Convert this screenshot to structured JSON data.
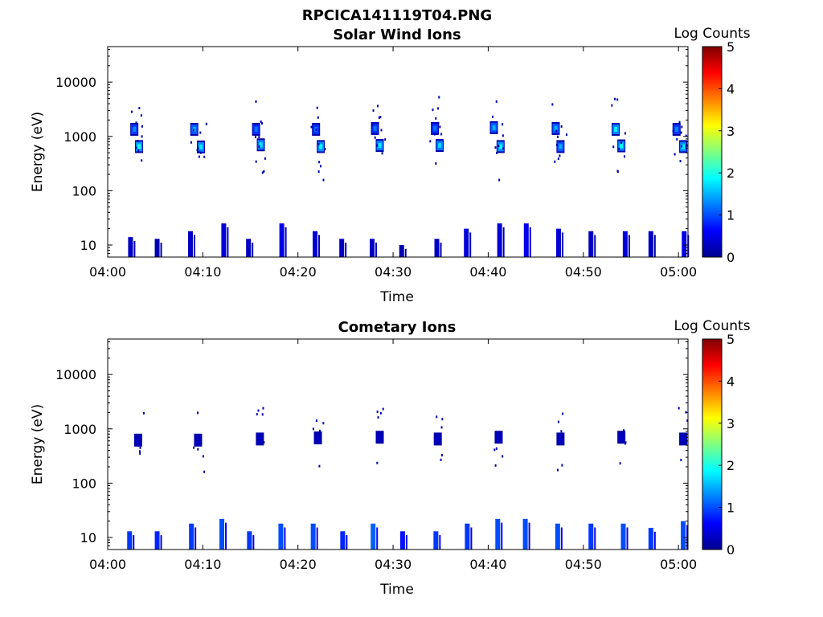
{
  "figure": {
    "suptitle": "RPCICA141119T04.PNG"
  },
  "colormap": {
    "name": "jet",
    "stops": [
      "#00008f",
      "#0000ff",
      "#0080ff",
      "#00ffff",
      "#80ff80",
      "#ffff00",
      "#ff8000",
      "#ff0000",
      "#800000"
    ]
  },
  "chart_data": [
    {
      "type": "heatmap",
      "title": "Solar Wind Ions",
      "xlabel": "Time",
      "ylabel": "Energy (eV)",
      "colorbar_label": "Log Counts",
      "colorbar_range": [
        0,
        5
      ],
      "colorbar_ticks": [
        "0",
        "1",
        "2",
        "3",
        "4",
        "5"
      ],
      "xlim": [
        "04:00",
        "05:01"
      ],
      "xticks": [
        "04:00",
        "04:10",
        "04:20",
        "04:30",
        "04:40",
        "04:50",
        "05:00"
      ],
      "yscale": "log",
      "ylim": [
        6,
        45000
      ],
      "yticks": [
        {
          "value": 10,
          "label": "10"
        },
        {
          "value": 100,
          "label": "100"
        },
        {
          "value": 1000,
          "label": "1000"
        },
        {
          "value": 10000,
          "label": "10000"
        }
      ],
      "peak_bands": [
        {
          "t": "04:03.3",
          "e": 650,
          "v": 2.0
        },
        {
          "t": "04:02.8",
          "e": 1350,
          "v": 1.3
        },
        {
          "t": "04:09.8",
          "e": 640,
          "v": 1.8
        },
        {
          "t": "04:09.1",
          "e": 1350,
          "v": 1.5
        },
        {
          "t": "04:16.1",
          "e": 700,
          "v": 1.8
        },
        {
          "t": "04:15.6",
          "e": 1350,
          "v": 1.2
        },
        {
          "t": "04:22.4",
          "e": 650,
          "v": 1.9
        },
        {
          "t": "04:21.9",
          "e": 1350,
          "v": 1.2
        },
        {
          "t": "04:28.6",
          "e": 680,
          "v": 1.8
        },
        {
          "t": "04:28.1",
          "e": 1400,
          "v": 1.2
        },
        {
          "t": "04:34.9",
          "e": 680,
          "v": 1.7
        },
        {
          "t": "04:34.4",
          "e": 1400,
          "v": 1.2
        },
        {
          "t": "04:41.3",
          "e": 650,
          "v": 1.9
        },
        {
          "t": "04:40.6",
          "e": 1450,
          "v": 1.5
        },
        {
          "t": "04:47.6",
          "e": 650,
          "v": 1.5
        },
        {
          "t": "04:47.1",
          "e": 1400,
          "v": 1.5
        },
        {
          "t": "04:54.0",
          "e": 670,
          "v": 1.9
        },
        {
          "t": "04:53.4",
          "e": 1350,
          "v": 1.8
        },
        {
          "t": "05:00.5",
          "e": 650,
          "v": 1.8
        },
        {
          "t": "04:59.8",
          "e": 1350,
          "v": 1.3
        }
      ],
      "low_energy_columns": [
        {
          "t": "04:02.4",
          "e_top": 14,
          "v": 0.3
        },
        {
          "t": "04:05.2",
          "e_top": 13,
          "v": 0.2
        },
        {
          "t": "04:08.7",
          "e_top": 18,
          "v": 0.3
        },
        {
          "t": "04:12.2",
          "e_top": 25,
          "v": 0.4
        },
        {
          "t": "04:14.8",
          "e_top": 13,
          "v": 0.3
        },
        {
          "t": "04:18.3",
          "e_top": 25,
          "v": 0.5
        },
        {
          "t": "04:21.8",
          "e_top": 18,
          "v": 0.4
        },
        {
          "t": "04:24.6",
          "e_top": 13,
          "v": 0.3
        },
        {
          "t": "04:27.8",
          "e_top": 13,
          "v": 0.3
        },
        {
          "t": "04:30.9",
          "e_top": 10,
          "v": 0.2
        },
        {
          "t": "04:34.6",
          "e_top": 13,
          "v": 0.3
        },
        {
          "t": "04:37.7",
          "e_top": 20,
          "v": 0.4
        },
        {
          "t": "04:41.2",
          "e_top": 25,
          "v": 0.4
        },
        {
          "t": "04:44.0",
          "e_top": 25,
          "v": 0.5
        },
        {
          "t": "04:47.4",
          "e_top": 20,
          "v": 0.4
        },
        {
          "t": "04:50.8",
          "e_top": 18,
          "v": 0.3
        },
        {
          "t": "04:54.4",
          "e_top": 18,
          "v": 0.4
        },
        {
          "t": "04:57.1",
          "e_top": 18,
          "v": 0.3
        },
        {
          "t": "05:00.6",
          "e_top": 18,
          "v": 0.5
        }
      ]
    },
    {
      "type": "heatmap",
      "title": "Cometary Ions",
      "xlabel": "Time",
      "ylabel": "Energy (eV)",
      "colorbar_label": "Log Counts",
      "colorbar_range": [
        0,
        5
      ],
      "colorbar_ticks": [
        "0",
        "1",
        "2",
        "3",
        "4",
        "5"
      ],
      "xlim": [
        "04:00",
        "05:01"
      ],
      "xticks": [
        "04:00",
        "04:10",
        "04:20",
        "04:30",
        "04:40",
        "04:50",
        "05:00"
      ],
      "yscale": "log",
      "ylim": [
        6,
        45000
      ],
      "yticks": [
        {
          "value": 10,
          "label": "10"
        },
        {
          "value": 100,
          "label": "100"
        },
        {
          "value": 1000,
          "label": "1000"
        },
        {
          "value": 10000,
          "label": "10000"
        }
      ],
      "peak_bands": [
        {
          "t": "04:03.2",
          "e": 620,
          "v": 0.3
        },
        {
          "t": "04:09.5",
          "e": 620,
          "v": 0.3
        },
        {
          "t": "04:16.0",
          "e": 650,
          "v": 0.3
        },
        {
          "t": "04:22.1",
          "e": 680,
          "v": 0.3
        },
        {
          "t": "04:28.6",
          "e": 700,
          "v": 0.3
        },
        {
          "t": "04:34.7",
          "e": 650,
          "v": 0.3
        },
        {
          "t": "04:41.1",
          "e": 700,
          "v": 0.3
        },
        {
          "t": "04:47.6",
          "e": 650,
          "v": 0.3
        },
        {
          "t": "04:54.0",
          "e": 700,
          "v": 0.3
        },
        {
          "t": "05:00.5",
          "e": 650,
          "v": 0.3
        }
      ],
      "low_energy_columns": [
        {
          "t": "04:02.3",
          "e_top": 13,
          "v": 0.9
        },
        {
          "t": "04:05.2",
          "e_top": 13,
          "v": 0.8
        },
        {
          "t": "04:08.8",
          "e_top": 18,
          "v": 0.9
        },
        {
          "t": "04:12.0",
          "e_top": 22,
          "v": 1.0
        },
        {
          "t": "04:14.9",
          "e_top": 13,
          "v": 0.9
        },
        {
          "t": "04:18.2",
          "e_top": 18,
          "v": 1.0
        },
        {
          "t": "04:21.6",
          "e_top": 18,
          "v": 1.0
        },
        {
          "t": "04:24.7",
          "e_top": 13,
          "v": 0.8
        },
        {
          "t": "04:27.9",
          "e_top": 18,
          "v": 1.1
        },
        {
          "t": "04:31.0",
          "e_top": 13,
          "v": 0.7
        },
        {
          "t": "04:34.5",
          "e_top": 13,
          "v": 0.9
        },
        {
          "t": "04:37.8",
          "e_top": 18,
          "v": 0.9
        },
        {
          "t": "04:41.0",
          "e_top": 22,
          "v": 1.0
        },
        {
          "t": "04:43.9",
          "e_top": 22,
          "v": 1.0
        },
        {
          "t": "04:47.3",
          "e_top": 18,
          "v": 1.0
        },
        {
          "t": "04:50.8",
          "e_top": 18,
          "v": 0.9
        },
        {
          "t": "04:54.2",
          "e_top": 18,
          "v": 1.0
        },
        {
          "t": "04:57.1",
          "e_top": 15,
          "v": 0.9
        },
        {
          "t": "05:00.5",
          "e_top": 20,
          "v": 1.0
        }
      ]
    }
  ]
}
